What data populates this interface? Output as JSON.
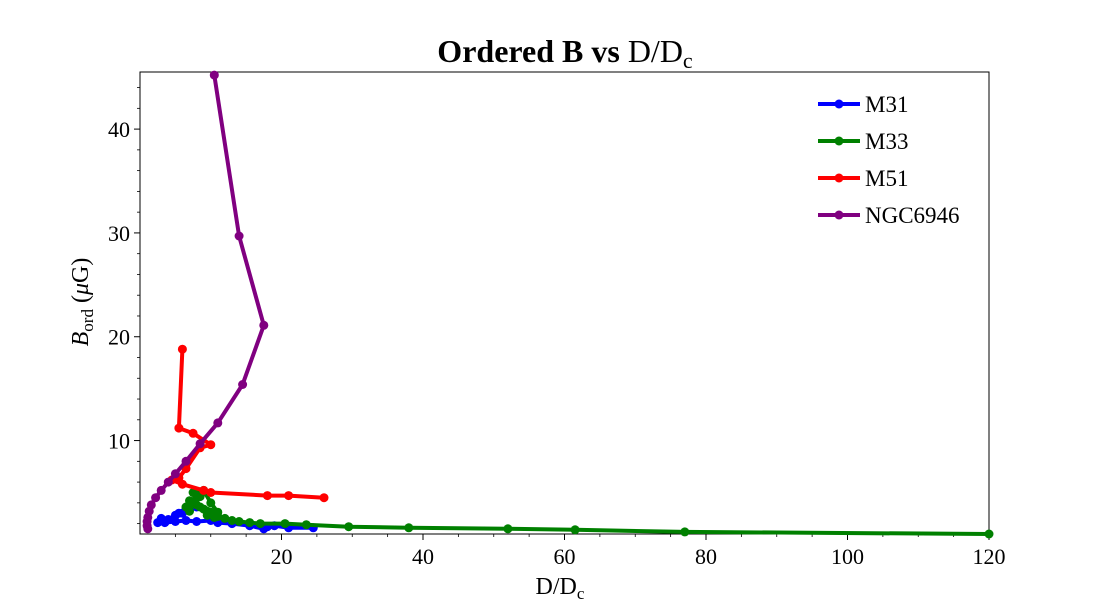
{
  "chart_data": {
    "type": "line",
    "title": {
      "bold": "Ordered B vs",
      "main": "D/D",
      "sub": "c"
    },
    "xlabel": {
      "main": "D/D",
      "sub": "c"
    },
    "ylabel": {
      "italic": "B",
      "sub": "ord",
      "rest": "(",
      "mu": "μ",
      "unit": "G)"
    },
    "xlim": [
      0,
      120
    ],
    "ylim": [
      1,
      45.5
    ],
    "x_ticks": [
      20,
      40,
      60,
      80,
      100,
      120
    ],
    "y_ticks": [
      10,
      20,
      30,
      40
    ],
    "grid": false,
    "legend_position": "top-right",
    "series": [
      {
        "name": "M31",
        "color": "#0000ff",
        "points": [
          [
            24.5,
            1.6
          ],
          [
            21,
            1.6
          ],
          [
            19,
            1.8
          ],
          [
            18,
            1.7
          ],
          [
            17.5,
            1.5
          ],
          [
            15.5,
            1.8
          ],
          [
            13,
            2.0
          ],
          [
            11,
            2.1
          ],
          [
            10,
            2.3
          ],
          [
            8,
            2.2
          ],
          [
            6.5,
            2.3
          ],
          [
            5,
            2.2
          ],
          [
            3.5,
            2.1
          ],
          [
            2.5,
            2.1
          ],
          [
            3,
            2.5
          ],
          [
            4,
            2.4
          ],
          [
            5,
            2.8
          ],
          [
            6,
            3.0
          ],
          [
            7,
            3.3
          ],
          [
            8,
            3.6
          ],
          [
            6.5,
            3.4
          ],
          [
            5.5,
            3.0
          ]
        ]
      },
      {
        "name": "M33",
        "color": "#008000",
        "points": [
          [
            120,
            1.0
          ],
          [
            77,
            1.2
          ],
          [
            61.5,
            1.4
          ],
          [
            52,
            1.5
          ],
          [
            38,
            1.6
          ],
          [
            29.5,
            1.7
          ],
          [
            23.5,
            1.9
          ],
          [
            20.5,
            2.0
          ],
          [
            17,
            2.0
          ],
          [
            15.5,
            2.1
          ],
          [
            14,
            2.2
          ],
          [
            13,
            2.3
          ],
          [
            12,
            2.5
          ],
          [
            11,
            2.7
          ],
          [
            10.5,
            2.9
          ],
          [
            10,
            3.1
          ],
          [
            9.5,
            3.2
          ],
          [
            9,
            3.4
          ],
          [
            8.5,
            3.6
          ],
          [
            8,
            3.8
          ],
          [
            7.5,
            4.0
          ],
          [
            7,
            4.2
          ],
          [
            6.5,
            3.6
          ],
          [
            7,
            3.2
          ],
          [
            8,
            4.5
          ],
          [
            8.5,
            4.6
          ],
          [
            7.5,
            5.0
          ],
          [
            9,
            5.2
          ],
          [
            10,
            4.0
          ],
          [
            11,
            3.1
          ],
          [
            10.5,
            2.6
          ],
          [
            9.5,
            2.8
          ]
        ]
      },
      {
        "name": "M51",
        "color": "#ff0000",
        "points": [
          [
            26,
            4.5
          ],
          [
            21,
            4.7
          ],
          [
            18,
            4.7
          ],
          [
            10,
            5.0
          ],
          [
            9,
            5.2
          ],
          [
            6,
            5.8
          ],
          [
            4.5,
            6.2
          ],
          [
            5.5,
            6.4
          ],
          [
            6.5,
            7.3
          ],
          [
            8.5,
            9.3
          ],
          [
            10,
            9.6
          ],
          [
            7.5,
            10.7
          ],
          [
            5.5,
            11.2
          ],
          [
            6,
            18.8
          ]
        ]
      },
      {
        "name": "NGC6946",
        "color": "#800080",
        "points": [
          [
            10.5,
            45.2
          ],
          [
            14,
            29.7
          ],
          [
            17.5,
            21.1
          ],
          [
            14.5,
            15.4
          ],
          [
            11,
            11.7
          ],
          [
            8.5,
            9.7
          ],
          [
            6.5,
            8.0
          ],
          [
            5,
            6.8
          ],
          [
            4,
            6.0
          ],
          [
            3,
            5.2
          ],
          [
            2.2,
            4.5
          ],
          [
            1.6,
            3.8
          ],
          [
            1.3,
            3.2
          ],
          [
            1.1,
            2.6
          ],
          [
            1.0,
            2.2
          ],
          [
            1.0,
            1.8
          ],
          [
            1.1,
            1.5
          ]
        ]
      }
    ]
  }
}
